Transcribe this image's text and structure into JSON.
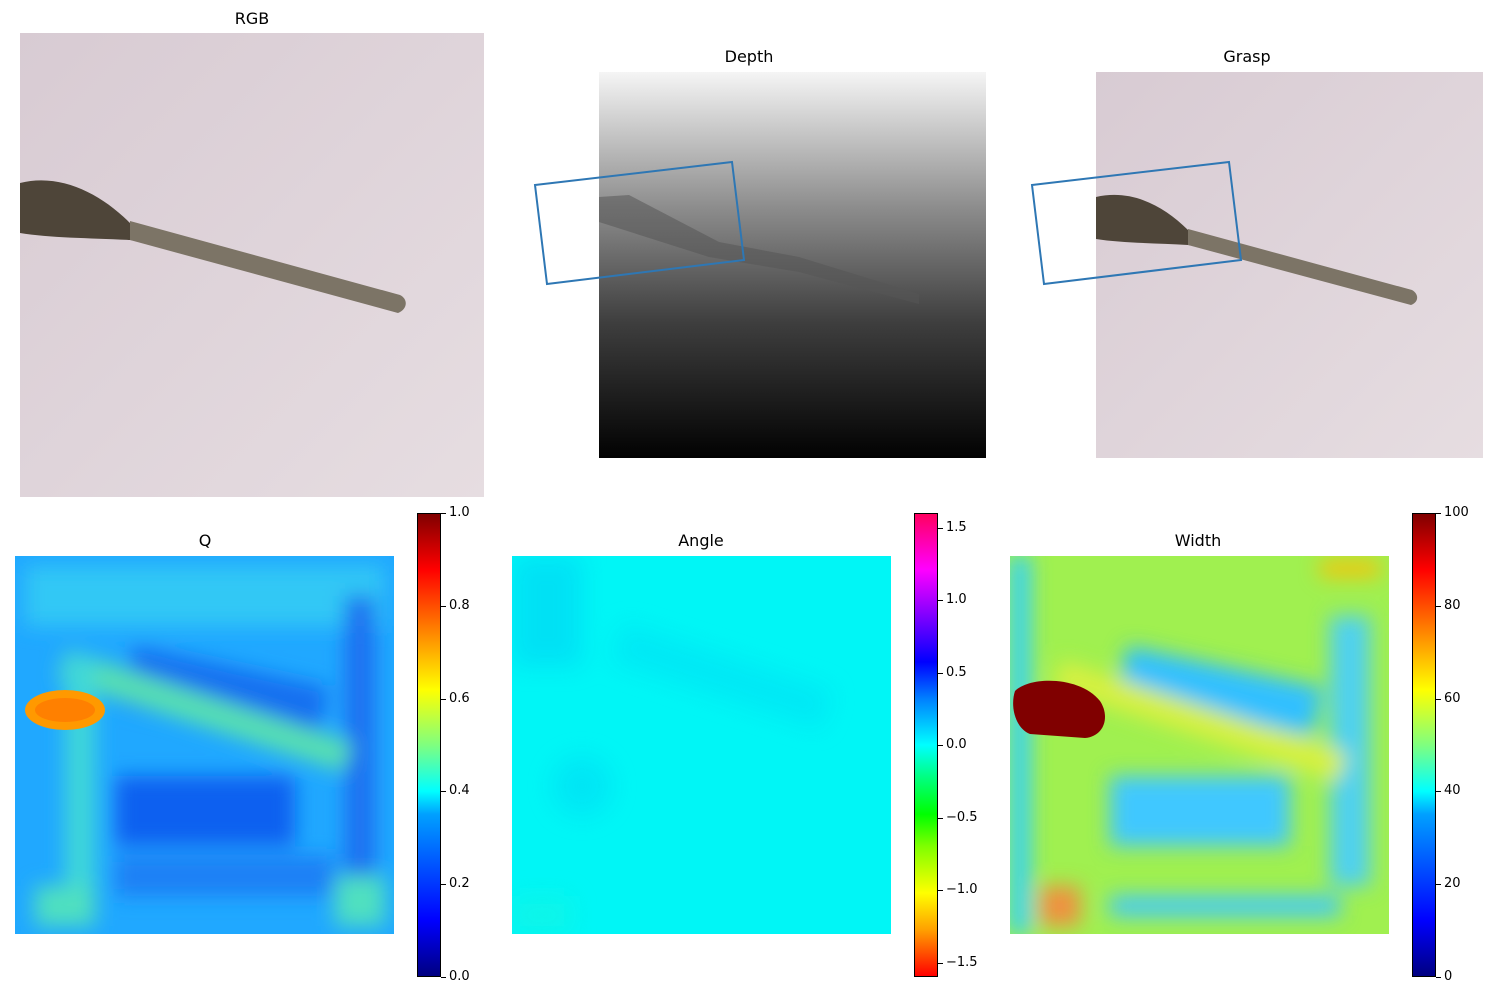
{
  "chart_data": [
    {
      "type": "image",
      "title": "RGB"
    },
    {
      "type": "image",
      "title": "Depth"
    },
    {
      "type": "image",
      "title": "Grasp"
    },
    {
      "type": "heatmap",
      "title": "Q",
      "colormap": "jet",
      "clim": [
        0.0,
        1.0
      ],
      "colorbar_ticks": [
        "0.0",
        "0.2",
        "0.4",
        "0.6",
        "0.8",
        "1.0"
      ]
    },
    {
      "type": "heatmap",
      "title": "Angle",
      "colormap": "hsv",
      "clim": [
        -1.6,
        1.6
      ],
      "colorbar_ticks": [
        "1.5",
        "1.0",
        "0.5",
        "0.0",
        "−0.5",
        "−1.0",
        "−1.5"
      ],
      "colorbar_tick_values": [
        1.5,
        1.0,
        0.5,
        0.0,
        -0.5,
        -1.0,
        -1.5
      ]
    },
    {
      "type": "heatmap",
      "title": "Width",
      "colormap": "jet",
      "clim": [
        0,
        100
      ],
      "colorbar_ticks": [
        "0",
        "20",
        "40",
        "60",
        "80",
        "100"
      ]
    }
  ],
  "colors": {
    "grasp_rect": "#2e77b4",
    "rgb_background": "#dfd3d9",
    "spoon": "#7c7466",
    "angle_field": "#00f5f5"
  }
}
